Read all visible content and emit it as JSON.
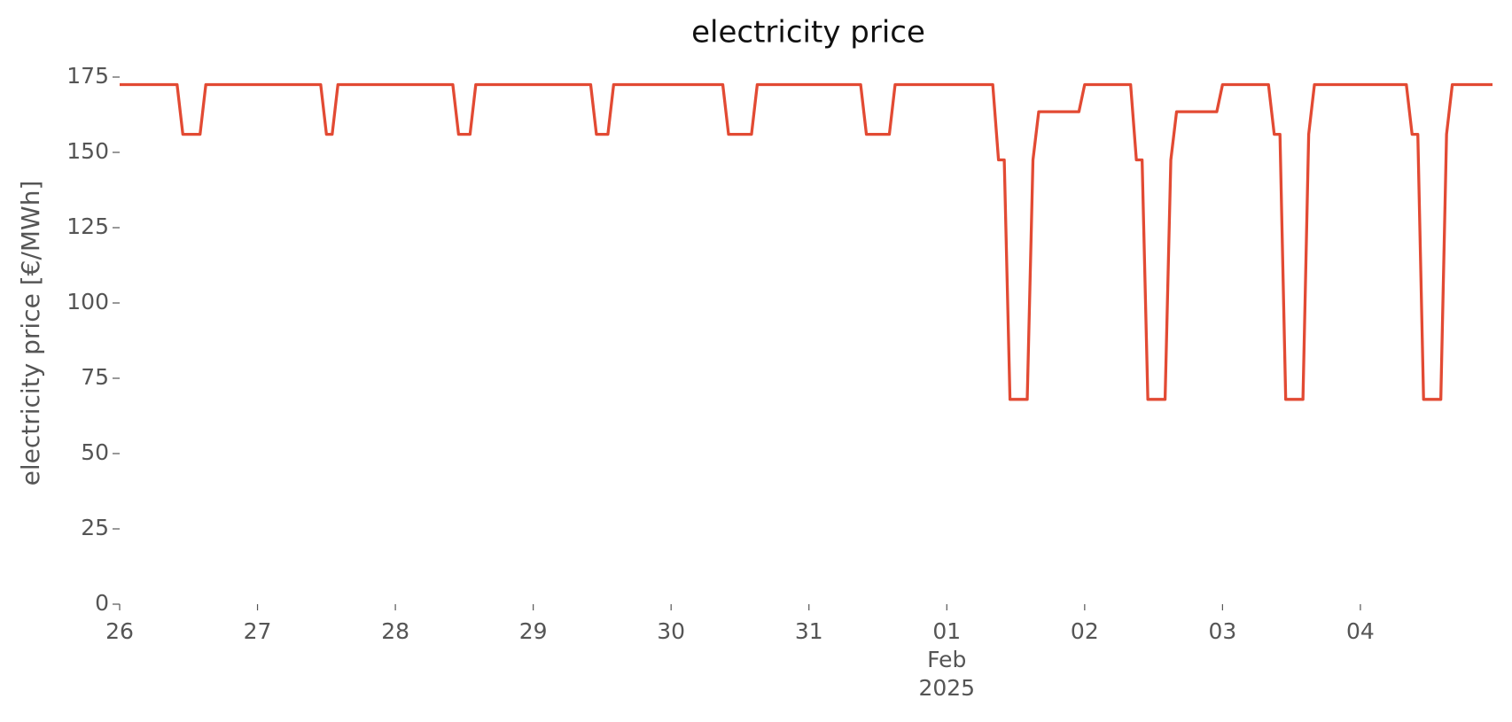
{
  "chart_data": {
    "type": "line",
    "title": "electricity price",
    "ylabel": "electricity price [€/MWh]",
    "x": [
      0,
      10,
      11,
      14,
      15,
      35,
      36,
      37,
      38,
      58,
      59,
      61,
      62,
      82,
      83,
      85,
      86,
      105,
      106,
      110,
      111,
      129,
      130,
      134,
      135,
      152,
      153,
      154,
      155,
      158,
      159,
      160,
      167,
      168,
      176,
      177,
      178,
      179,
      182,
      183,
      184,
      191,
      192,
      200,
      201,
      202,
      203,
      206,
      207,
      208,
      224,
      225,
      226,
      227,
      230,
      231,
      232,
      239
    ],
    "series": [
      {
        "name": "electricity price",
        "color": "#e24a33",
        "values": [
          172.5,
          172.5,
          156,
          156,
          172.5,
          172.5,
          156,
          156,
          172.5,
          172.5,
          156,
          156,
          172.5,
          172.5,
          156,
          156,
          172.5,
          172.5,
          156,
          156,
          172.5,
          172.5,
          156,
          156,
          172.5,
          172.5,
          147.5,
          147.5,
          68,
          68,
          147.5,
          163.5,
          163.5,
          172.5,
          172.5,
          147.5,
          147.5,
          68,
          68,
          147.5,
          163.5,
          163.5,
          172.5,
          172.5,
          156,
          156,
          68,
          68,
          156,
          172.5,
          172.5,
          156,
          156,
          68,
          68,
          156,
          172.5,
          172.5
        ]
      }
    ],
    "xlim": [
      0,
      239
    ],
    "xticks": [
      {
        "value": 0,
        "label": "26"
      },
      {
        "value": 24,
        "label": "27"
      },
      {
        "value": 48,
        "label": "28"
      },
      {
        "value": 72,
        "label": "29"
      },
      {
        "value": 96,
        "label": "30"
      },
      {
        "value": 120,
        "label": "31"
      },
      {
        "value": 144,
        "label": "01\nFeb\n2025"
      },
      {
        "value": 168,
        "label": "02"
      },
      {
        "value": 192,
        "label": "03"
      },
      {
        "value": 216,
        "label": "04"
      }
    ],
    "ylim": [
      0,
      180
    ],
    "yticks": [
      0,
      25,
      50,
      75,
      100,
      125,
      150,
      175
    ],
    "grid": false
  }
}
